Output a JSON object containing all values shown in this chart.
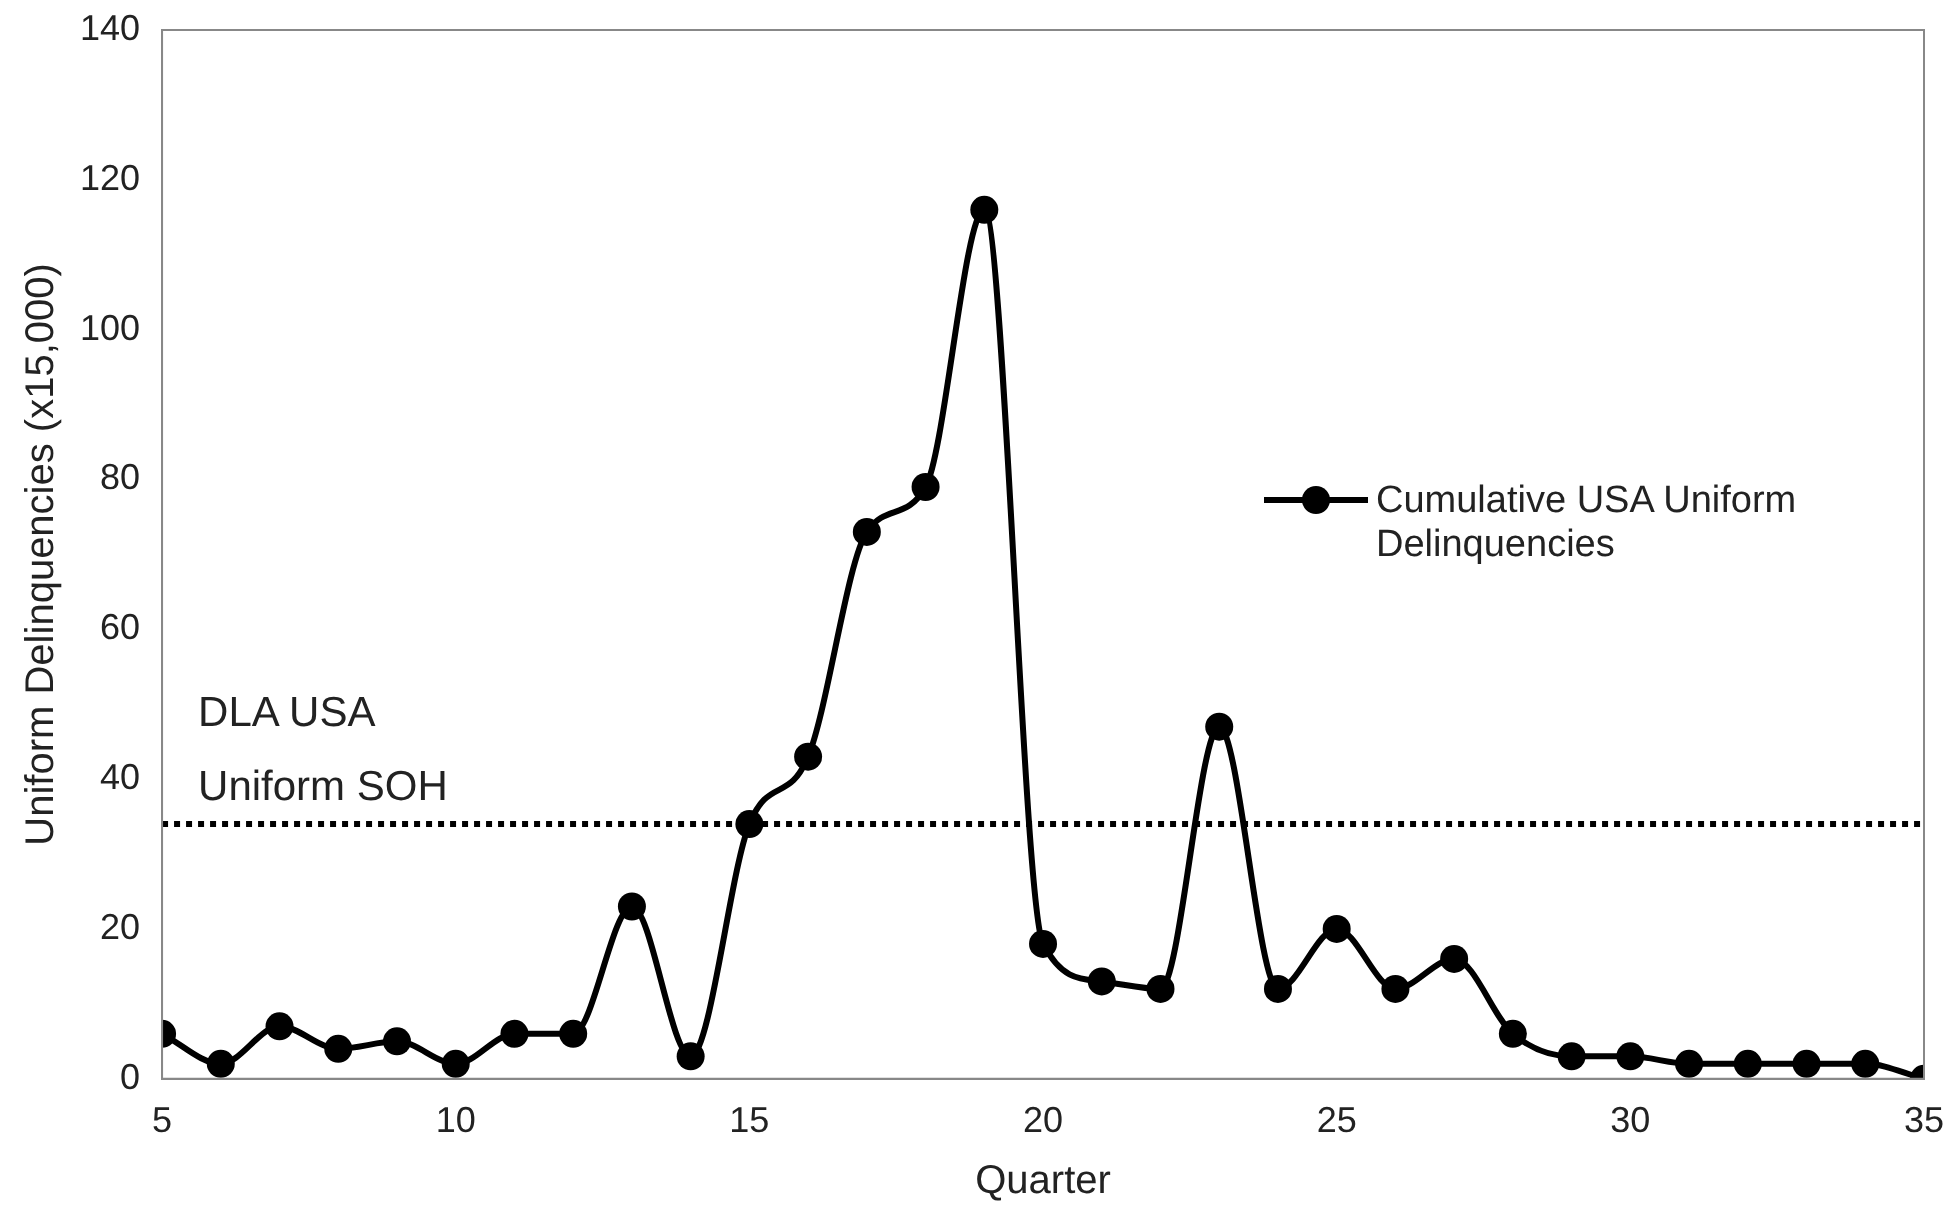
{
  "chart_data": {
    "type": "line",
    "xlabel": "Quarter",
    "ylabel": "Uniform Delinquencies (x15,000)",
    "x": [
      5,
      6,
      7,
      8,
      9,
      10,
      11,
      12,
      13,
      14,
      15,
      16,
      17,
      18,
      19,
      20,
      21,
      22,
      23,
      24,
      25,
      26,
      27,
      28,
      29,
      30,
      31,
      32,
      33,
      34,
      35
    ],
    "series": [
      {
        "name": "Cumulative USA Uniform Delinquencies",
        "color": "#000000",
        "values": [
          6,
          2,
          7,
          4,
          5,
          2,
          6,
          6,
          23,
          3,
          34,
          43,
          73,
          79,
          116,
          18,
          13,
          12,
          47,
          12,
          20,
          12,
          16,
          6,
          3,
          3,
          2,
          2,
          2,
          2,
          0
        ]
      }
    ],
    "xlim": [
      5,
      35
    ],
    "xticks": [
      5,
      10,
      15,
      20,
      25,
      30,
      35
    ],
    "ylim": [
      0,
      140
    ],
    "yticks": [
      0,
      20,
      40,
      60,
      80,
      100,
      120,
      140
    ],
    "ref_lines": [
      {
        "axis": "y",
        "value": 34,
        "label": "DLA USA Uniform SOH",
        "line_style": "dotted",
        "color": "#000000"
      }
    ],
    "grid": false,
    "legend": "right",
    "marker": "circle",
    "line_style": "solid"
  }
}
